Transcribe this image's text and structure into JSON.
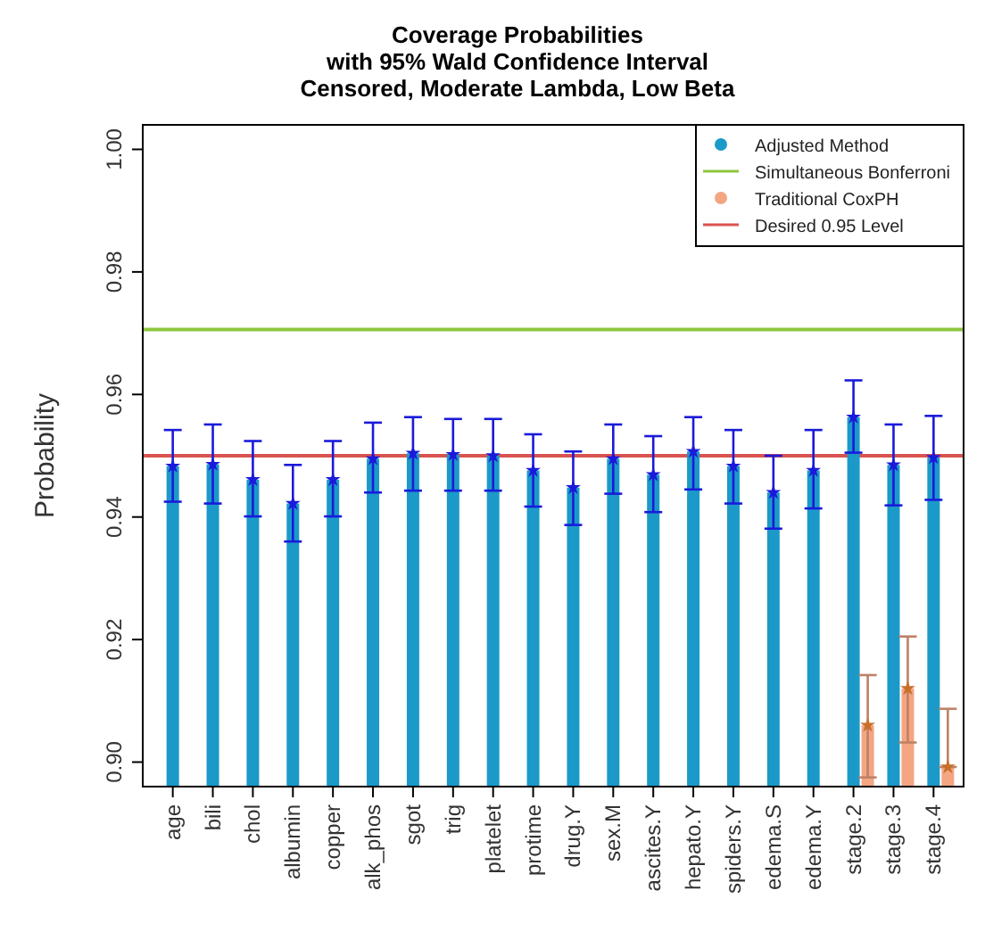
{
  "chart_data": {
    "type": "bar",
    "title": "Coverage Probabilities\nwith 95% Wald Confidence Interval\nCensored, Moderate Lambda, Low Beta",
    "ylabel": "Probability",
    "categories": [
      "age",
      "bili",
      "chol",
      "albumin",
      "copper",
      "alk_phos",
      "sgot",
      "trig",
      "platelet",
      "protime",
      "drug.Y",
      "sex.M",
      "ascites.Y",
      "hepato.Y",
      "spiders.Y",
      "edema.S",
      "edema.Y",
      "stage.2",
      "stage.3",
      "stage.4"
    ],
    "series": [
      {
        "name": "Adjusted Method",
        "color": "#1b9ac9",
        "values": [
          0.9483,
          0.9486,
          0.9461,
          0.9422,
          0.9461,
          0.9495,
          0.9504,
          0.9502,
          0.95,
          0.9476,
          0.9448,
          0.9495,
          0.9469,
          0.9507,
          0.9483,
          0.944,
          0.9476,
          0.9563,
          0.9485,
          0.9497
        ],
        "errors": [
          [
            0.9425,
            0.9542
          ],
          [
            0.9422,
            0.9551
          ],
          [
            0.9401,
            0.9524
          ],
          [
            0.936,
            0.9485
          ],
          [
            0.9401,
            0.9524
          ],
          [
            0.944,
            0.9554
          ],
          [
            0.9443,
            0.9563
          ],
          [
            0.9443,
            0.956
          ],
          [
            0.9443,
            0.956
          ],
          [
            0.9417,
            0.9535
          ],
          [
            0.9387,
            0.9507
          ],
          [
            0.9438,
            0.9551
          ],
          [
            0.9408,
            0.9532
          ],
          [
            0.9445,
            0.9563
          ],
          [
            0.9422,
            0.9542
          ],
          [
            0.9381,
            0.95
          ],
          [
            0.9414,
            0.9542
          ],
          [
            0.9505,
            0.9623
          ],
          [
            0.9419,
            0.9551
          ],
          [
            0.9428,
            0.9565
          ]
        ]
      },
      {
        "name": "Traditional CoxPH",
        "color": "#f4a582",
        "values": [
          null,
          null,
          null,
          null,
          null,
          null,
          null,
          null,
          null,
          null,
          null,
          null,
          null,
          null,
          null,
          null,
          null,
          0.906,
          0.912,
          0.8992
        ],
        "errors": [
          null,
          null,
          null,
          null,
          null,
          null,
          null,
          null,
          null,
          null,
          null,
          null,
          null,
          null,
          null,
          null,
          null,
          [
            0.8975,
            0.9142
          ],
          [
            0.9032,
            0.9205
          ],
          [
            0.8992,
            0.9087
          ]
        ]
      },
      {
        "type": "scatter",
        "color": "#1a1adb",
        "x": [
          "age",
          "bili",
          "chol",
          "albumin",
          "copper",
          "alk_phos",
          "sgot",
          "trig",
          "platelet",
          "protime",
          "drug.Y",
          "sex.M",
          "ascites.Y",
          "hepato.Y",
          "spiders.Y",
          "edema.S",
          "edema.Y",
          "stage.2",
          "stage.3",
          "stage.4"
        ],
        "values": [
          0.9483,
          0.9486,
          0.9461,
          0.9422,
          0.9461,
          0.9495,
          0.9504,
          0.9502,
          0.95,
          0.9476,
          0.9448,
          0.9495,
          0.9469,
          0.9507,
          0.9483,
          0.944,
          0.9476,
          0.9563,
          0.9485,
          0.9497
        ]
      },
      {
        "type": "scatter",
        "color": "#c8702a",
        "x": [
          "stage.2",
          "stage.3",
          "stage.4"
        ],
        "values": [
          0.906,
          0.912,
          0.8992
        ]
      }
    ],
    "ylim": [
      0.896,
      1.004
    ],
    "yticks": [
      {
        "value": 0.9,
        "label": "0.90"
      },
      0.92,
      0.94,
      0.96,
      0.98,
      {
        "value": 1.0,
        "label": "1.00"
      }
    ],
    "ref_lines": [
      {
        "axis": "y",
        "value": 0.9706,
        "label": "Simultaneous Bonferroni",
        "color": "#8dc63f"
      },
      {
        "axis": "y",
        "value": 0.95,
        "label": "Desired 0.95 Level",
        "color": "#d9534f"
      }
    ],
    "legend": "top right",
    "marker": "star"
  }
}
